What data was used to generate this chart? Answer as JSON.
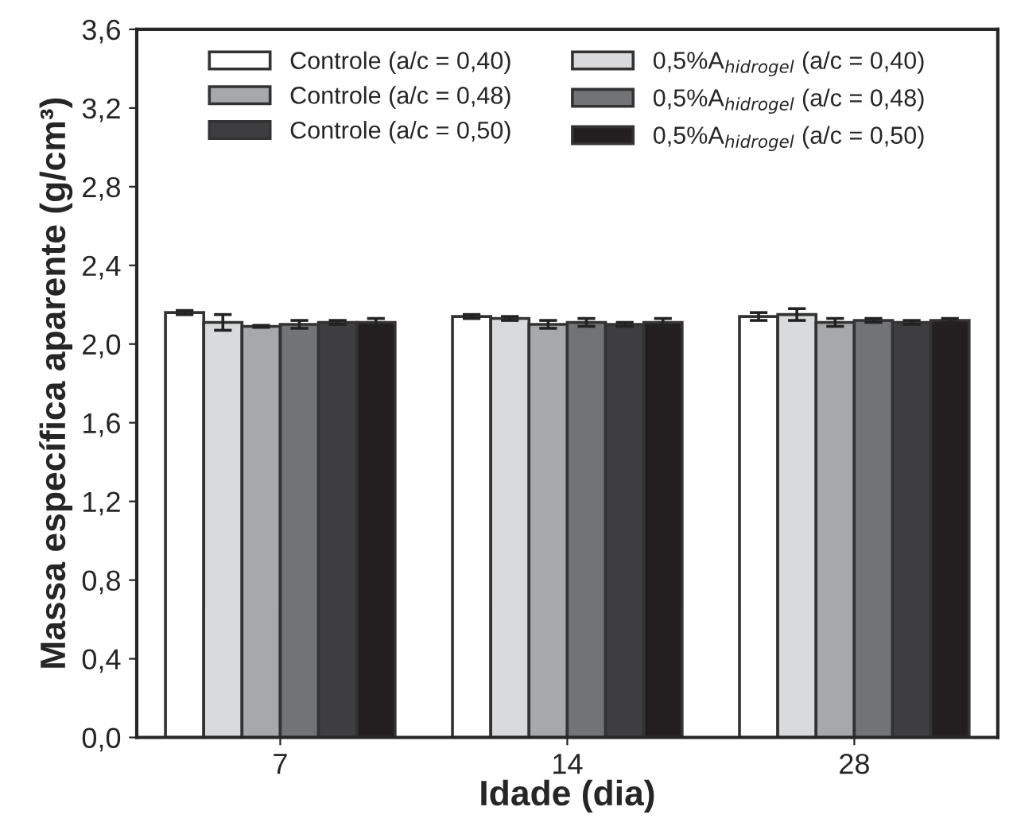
{
  "chart_data": {
    "type": "bar",
    "xlabel": "Idade (dia)",
    "ylabel": "Massa específica aparente (g/cm³)",
    "categories": [
      "7",
      "14",
      "28"
    ],
    "series": [
      {
        "name": "Controle (a/c = 0,40)",
        "color": "#ffffff",
        "values": [
          2.16,
          2.14,
          2.14
        ],
        "errors": [
          0.01,
          0.01,
          0.02
        ]
      },
      {
        "name": "0,5%A$_{hidrogel}$ (a/c = 0,40)",
        "color": "#d9dadb",
        "values": [
          2.11,
          2.13,
          2.15
        ],
        "errors": [
          0.04,
          0.01,
          0.03
        ]
      },
      {
        "name": "Controle (a/c = 0,48)",
        "color": "#a7a8aa",
        "values": [
          2.09,
          2.1,
          2.11
        ],
        "errors": [
          0.005,
          0.02,
          0.02
        ]
      },
      {
        "name": "0,5%A$_{hidrogel}$ (a/c = 0,48)",
        "color": "#727375",
        "values": [
          2.1,
          2.11,
          2.12
        ],
        "errors": [
          0.02,
          0.02,
          0.01
        ]
      },
      {
        "name": "Controle (a/c = 0,50)",
        "color": "#3e3e40",
        "values": [
          2.11,
          2.1,
          2.11
        ],
        "errors": [
          0.01,
          0.01,
          0.01
        ]
      },
      {
        "name": "0,5%A$_{hidrogel}$ (a/c = 0,50)",
        "color": "#231f20",
        "values": [
          2.11,
          2.11,
          2.12
        ],
        "errors": [
          0.02,
          0.02,
          0.01
        ]
      }
    ],
    "ylim": [
      0,
      3.6
    ],
    "yticks": [
      {
        "value": 0,
        "label": "0,0"
      },
      {
        "value": 0.4,
        "label": "0,4"
      },
      {
        "value": 0.8,
        "label": "0,8"
      },
      {
        "value": 1.2,
        "label": "1,2"
      },
      {
        "value": 1.6,
        "label": "1,6"
      },
      {
        "value": 2.0,
        "label": "2,0"
      },
      {
        "value": 2.4,
        "label": "2,4"
      },
      {
        "value": 2.8,
        "label": "2,8"
      },
      {
        "value": 3.2,
        "label": "3,2"
      },
      {
        "value": 3.6,
        "label": "3,6"
      }
    ],
    "grid": false,
    "legend": "top"
  }
}
